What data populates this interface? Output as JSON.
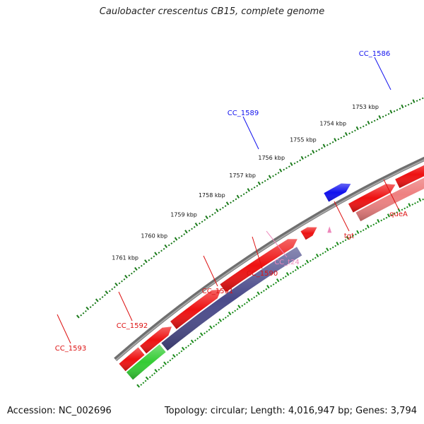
{
  "title": "Caulobacter crescentus CB15, complete genome",
  "footer": {
    "accession": "Accession: NC_002696",
    "summary": "Topology: circular; Length: 4,016,947 bp; Genes: 3,794"
  },
  "colors": {
    "backbone": "#8a8a8a",
    "tick_outer": "#1a7a1a",
    "tick_inner": "#1a8a1a",
    "cds": "#ee1111",
    "gene_reverse": "#4a4a8a",
    "gene_pink": "#ee8080",
    "blue_cds": "#1111ee",
    "green_gene": "#33cc33",
    "grey_gene": "#666666",
    "trna": "#ee88bb"
  },
  "ruler": {
    "unit": "kbp",
    "labels": [
      "1753 kbp",
      "1754 kbp",
      "1755 kbp",
      "1756 kbp",
      "1757 kbp",
      "1758 kbp",
      "1759 kbp",
      "1760 kbp",
      "1761 kbp"
    ]
  },
  "genes": [
    {
      "name": "CC_1586",
      "color": "#1111ee"
    },
    {
      "name": "CC_1589",
      "color": "#1111ee"
    },
    {
      "name": "queA",
      "color": "#dd1111"
    },
    {
      "name": "tgt",
      "color": "#dd1111"
    },
    {
      "name": "CC_t24",
      "color": "#ee88bb"
    },
    {
      "name": "CC_1590",
      "color": "#dd1111"
    },
    {
      "name": "CC_1591",
      "color": "#dd1111"
    },
    {
      "name": "CC_1592",
      "color": "#dd1111"
    },
    {
      "name": "CC_1593",
      "color": "#dd1111"
    }
  ]
}
